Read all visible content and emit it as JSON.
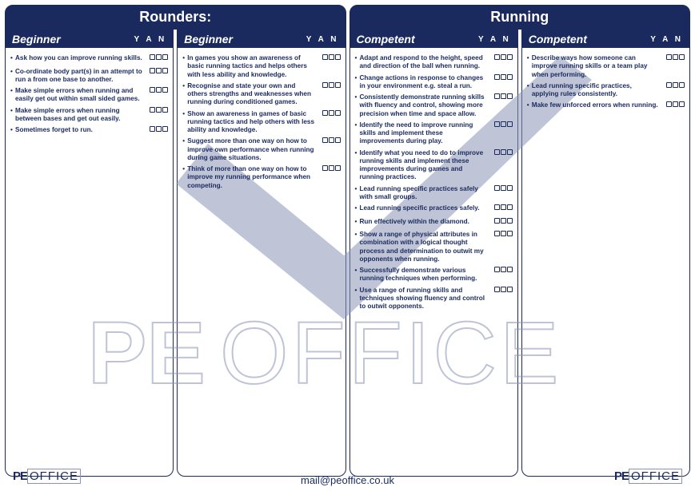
{
  "colors": {
    "brand": "#1a2a5e",
    "watermark": "#8a95b5",
    "bg": "#ffffff"
  },
  "headers": {
    "left": "Rounders:",
    "right": "Running"
  },
  "yan_label": "Y A N",
  "footer": {
    "logo_pe": "PE",
    "logo_office": "OFFICE",
    "email": "mail@peoffice.co.uk"
  },
  "watermark": {
    "pe": "PE",
    "office": "OFFICE"
  },
  "columns": [
    {
      "level": "Beginner",
      "items": [
        "Ask how you can improve running skills.",
        "Co-ordinate body part(s) in an attempt to run a from one base to another.",
        "Make simple errors when running and easily get out within small sided games.",
        "Make simple errors when running between bases and get out easily.",
        "Sometimes forget to run."
      ]
    },
    {
      "level": "Beginner",
      "items": [
        "In games you show an awareness of basic running tactics and helps others with less ability and knowledge.",
        "Recognise and state your own and others strengths and weaknesses when running during conditioned games.",
        "Show an awareness in games of basic running tactics and help others with less ability and knowledge.",
        "Suggest more than one way on how to improve own performance when running during game situations.",
        "Think of more than one way on how to improve my running performance when competing."
      ]
    },
    {
      "level": "Competent",
      "items": [
        "Adapt and respond to the height, speed and direction of the ball when running.",
        "Change actions in response to changes in your environment e.g. steal a run.",
        "Consistently demonstrate running skills with fluency and control, showing more precision when time and space allow.",
        "Identify the need to improve running skills and implement these improvements during play.",
        "Identify what you need to do to improve running skills and implement these improvements during games and running practices.",
        "Lead running specific practices safely with small groups.",
        "Lead running specific practices safely.",
        "Run effectively within the diamond.",
        "Show a range of physical attributes in combination with a logical thought process and determination to outwit my opponents when running.",
        "Successfully demonstrate various running techniques when performing.",
        "Use a range of running skills and techniques showing fluency and control to outwit opponents."
      ]
    },
    {
      "level": "Competent",
      "items": [
        "Describe ways how someone can improve running skills or a team play when performing.",
        "Lead running specific practices, applying rules consistently.",
        "Make few unforced errors when running."
      ]
    }
  ]
}
